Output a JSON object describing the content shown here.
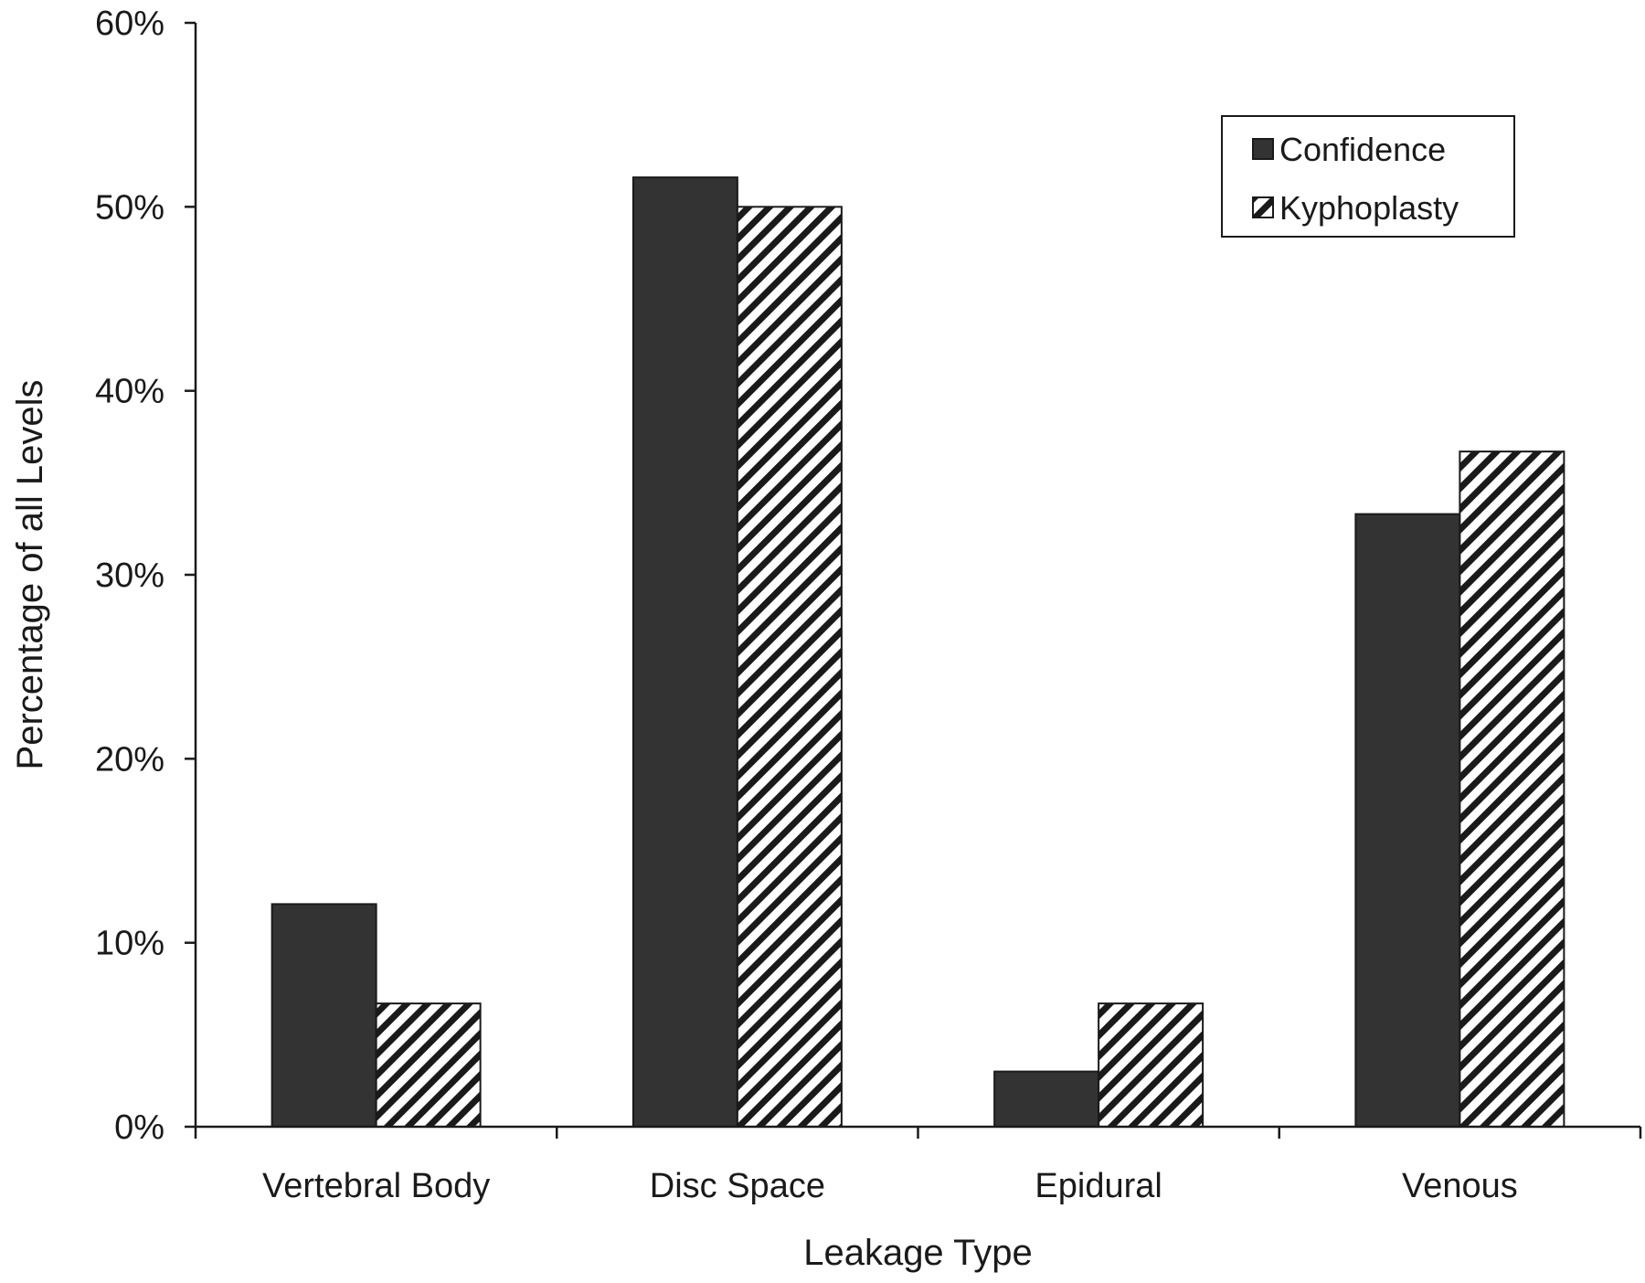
{
  "chart_data": {
    "type": "bar",
    "title": "",
    "xlabel": "Leakage Type",
    "ylabel": "Percentage of all Levels",
    "categories": [
      "Vertebral Body",
      "Disc Space",
      "Epidural",
      "Venous"
    ],
    "series": [
      {
        "name": "Confidence",
        "values": [
          12.1,
          51.6,
          3.0,
          33.3
        ],
        "fill": "solid",
        "color": "#333333"
      },
      {
        "name": "Kyphoplasty",
        "values": [
          6.7,
          50.0,
          6.7,
          36.7
        ],
        "fill": "hatched",
        "color": "#ffffff"
      }
    ],
    "ylim": [
      0,
      60
    ],
    "yticks": [
      0,
      10,
      20,
      30,
      40,
      50,
      60
    ],
    "ytick_labels": [
      "0%",
      "10%",
      "20%",
      "30%",
      "40%",
      "50%",
      "60%"
    ],
    "grid": false,
    "legend_position": "top-right"
  }
}
